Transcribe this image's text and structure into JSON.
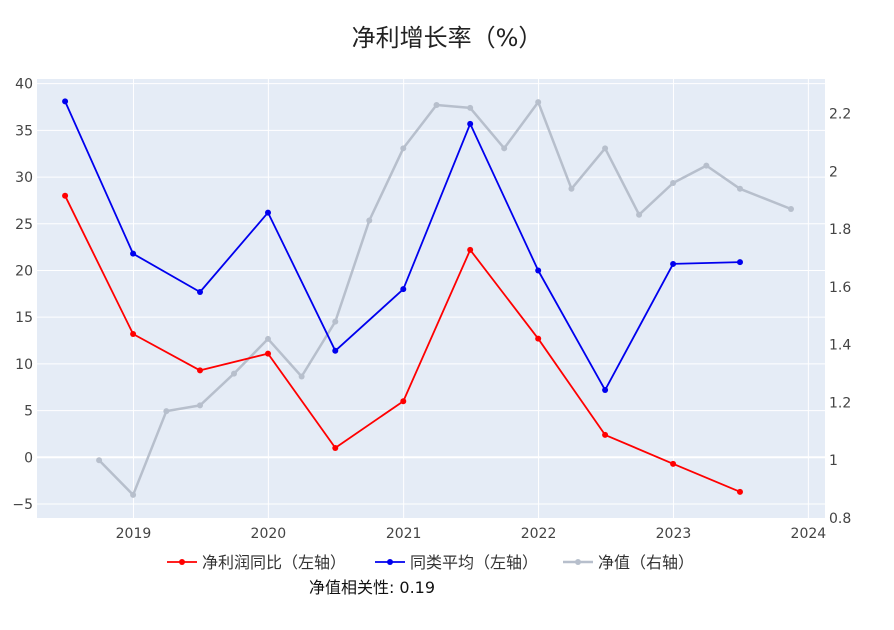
{
  "chart_data": {
    "type": "line",
    "title": "净利增长率（%）",
    "annotation": "净值相关性: 0.19",
    "legend_position": "bottom",
    "grid": true,
    "x_range": [
      "2018-04-15",
      "2024-02-15"
    ],
    "x_ticks": [
      "2019",
      "2020",
      "2021",
      "2022",
      "2023",
      "2024"
    ],
    "y_left_range": [
      -6.5,
      40.5
    ],
    "y_left_ticks": [
      -5,
      0,
      5,
      10,
      15,
      20,
      25,
      30,
      35,
      40
    ],
    "y_right_range": [
      0.8,
      2.32
    ],
    "y_right_ticks": [
      0.8,
      1,
      1.2,
      1.4,
      1.6,
      1.8,
      2,
      2.2
    ],
    "series": [
      {
        "name": "净利润同比（左轴）",
        "axis": "left",
        "color": "#ff0000",
        "x": [
          "2018-06-30",
          "2018-12-31",
          "2019-06-30",
          "2019-12-31",
          "2020-06-30",
          "2020-12-31",
          "2021-06-30",
          "2021-12-31",
          "2022-06-30",
          "2022-12-31",
          "2023-06-30"
        ],
        "values": [
          28.0,
          13.2,
          9.3,
          11.1,
          1.0,
          6.0,
          22.2,
          12.7,
          2.4,
          -0.7,
          -3.7
        ]
      },
      {
        "name": "同类平均（左轴）",
        "axis": "left",
        "color": "#0000ee",
        "x": [
          "2018-06-30",
          "2018-12-31",
          "2019-06-30",
          "2019-12-31",
          "2020-06-30",
          "2020-12-31",
          "2021-06-30",
          "2021-12-31",
          "2022-06-30",
          "2022-12-31",
          "2023-06-30"
        ],
        "values": [
          38.1,
          21.8,
          17.7,
          26.2,
          11.4,
          18.0,
          35.7,
          20.0,
          7.2,
          20.7,
          20.9
        ]
      },
      {
        "name": "净值（右轴）",
        "axis": "right",
        "color": "#b7bfcc",
        "x": [
          "2018-09-30",
          "2018-12-31",
          "2019-03-31",
          "2019-06-30",
          "2019-09-30",
          "2019-12-31",
          "2020-03-31",
          "2020-06-30",
          "2020-09-30",
          "2020-12-31",
          "2021-03-31",
          "2021-06-30",
          "2021-09-30",
          "2021-12-31",
          "2022-03-31",
          "2022-06-30",
          "2022-09-30",
          "2022-12-31",
          "2023-03-31",
          "2023-06-30",
          "2023-11-15"
        ],
        "values": [
          1.0,
          0.88,
          1.17,
          1.19,
          1.3,
          1.42,
          1.29,
          1.48,
          1.83,
          2.08,
          2.23,
          2.22,
          2.08,
          2.24,
          1.94,
          2.08,
          1.85,
          1.96,
          2.02,
          1.94,
          1.87
        ]
      }
    ]
  }
}
